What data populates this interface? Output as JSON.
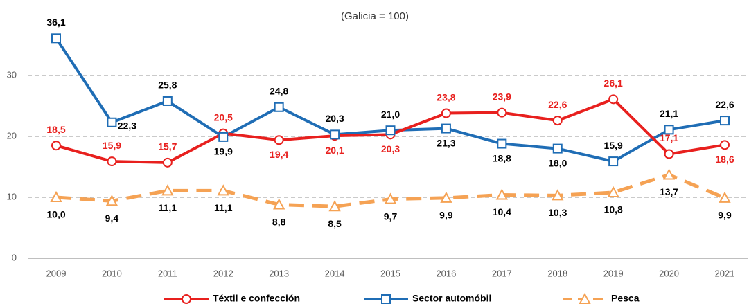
{
  "chart_data": {
    "type": "line",
    "title": "(Galicia = 100)",
    "categories": [
      "2009",
      "2010",
      "2011",
      "2012",
      "2013",
      "2014",
      "2015",
      "2016",
      "2017",
      "2018",
      "2019",
      "2020",
      "2021"
    ],
    "ylim": [
      0,
      40
    ],
    "yticks": [
      0,
      10,
      20,
      30
    ],
    "grid": true,
    "legend": "bottom",
    "series": [
      {
        "name": "Téxtil e confección",
        "color": "#e8201e",
        "label_color": "#e8201e",
        "marker": "circle",
        "dash": false,
        "values": [
          18.5,
          15.9,
          15.7,
          20.5,
          19.4,
          20.1,
          20.3,
          23.8,
          23.9,
          22.6,
          26.1,
          17.1,
          18.6
        ],
        "value_labels": [
          "18,5",
          "15,9",
          "15,7",
          "20,5",
          "19,4",
          "20,1",
          "20,3",
          "23,8",
          "23,9",
          "22,6",
          "26,1",
          "17,1",
          "18,6"
        ]
      },
      {
        "name": "Sector automóbil",
        "color": "#1f6db5",
        "label_color": "#000000",
        "marker": "square",
        "dash": false,
        "values": [
          36.1,
          22.3,
          25.8,
          19.9,
          24.8,
          20.3,
          21.0,
          21.3,
          18.8,
          18.0,
          15.9,
          21.1,
          22.6
        ],
        "value_labels": [
          "36,1",
          "22,3",
          "25,8",
          "19,9",
          "24,8",
          "20,3",
          "21,0",
          "21,3",
          "18,8",
          "18,0",
          "15,9",
          "21,1",
          "22,6"
        ]
      },
      {
        "name": "Pesca",
        "color": "#f5a254",
        "label_color": "#000000",
        "marker": "triangle",
        "dash": true,
        "values": [
          10.0,
          9.4,
          11.1,
          11.1,
          8.8,
          8.5,
          9.7,
          9.9,
          10.4,
          10.3,
          10.8,
          13.7,
          9.9
        ],
        "value_labels": [
          "10,0",
          "9,4",
          "11,1",
          "11,1",
          "8,8",
          "8,5",
          "9,7",
          "9,9",
          "10,4",
          "10,3",
          "10,8",
          "13,7",
          "9,9"
        ]
      }
    ]
  }
}
